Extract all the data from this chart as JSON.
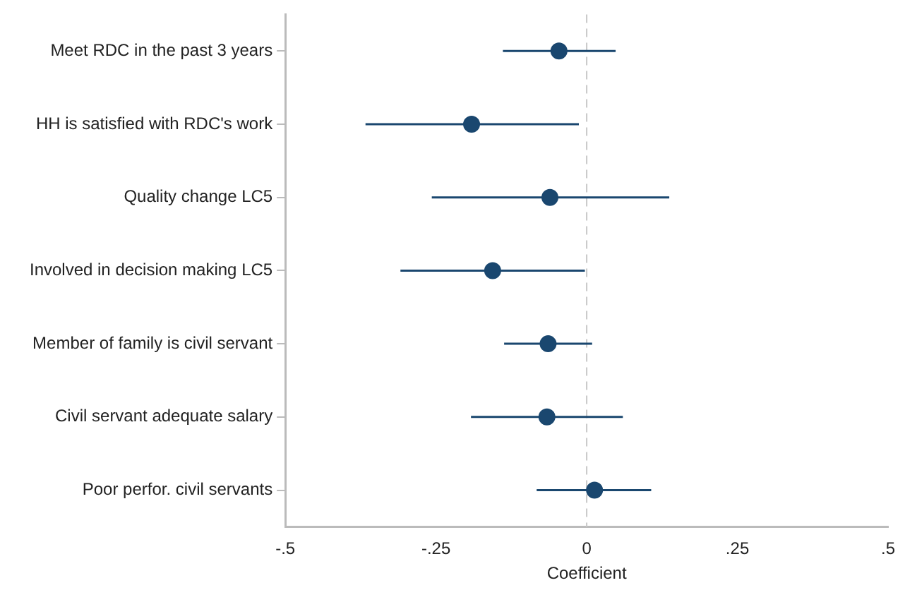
{
  "chart_data": {
    "type": "scatter",
    "orientation": "horizontal",
    "xlabel": "Coefficient",
    "categories": [
      "Meet RDC in the past 3 years",
      "HH is satisfied with RDC's work",
      "Quality change LC5",
      "Involved in decision making LC5",
      "Member of family is civil servant",
      "Civil servant adequate salary",
      "Poor perfor. civil servants"
    ],
    "values": [
      -0.046,
      -0.191,
      -0.061,
      -0.156,
      -0.064,
      -0.066,
      0.013
    ],
    "errors": [
      [
        -0.139,
        0.048
      ],
      [
        -0.367,
        -0.013
      ],
      [
        -0.257,
        0.137
      ],
      [
        -0.309,
        -0.003
      ],
      [
        -0.137,
        0.009
      ],
      [
        -0.192,
        0.06
      ],
      [
        -0.083,
        0.107
      ]
    ],
    "color": "#1a476f",
    "marker": "circle",
    "grid": false,
    "legend": false,
    "xlim": [
      -0.5,
      0.5
    ],
    "xticks": [
      {
        "value": -0.5,
        "label": "-.5"
      },
      {
        "value": -0.25,
        "label": "-.25"
      },
      {
        "value": 0,
        "label": "0"
      },
      {
        "value": 0.25,
        "label": ".25"
      },
      {
        "value": 0.5,
        "label": ".5"
      }
    ],
    "ref_lines": [
      {
        "axis": "x",
        "value": 0,
        "color": "#c8c8c8",
        "line_style": "dashed"
      }
    ]
  }
}
